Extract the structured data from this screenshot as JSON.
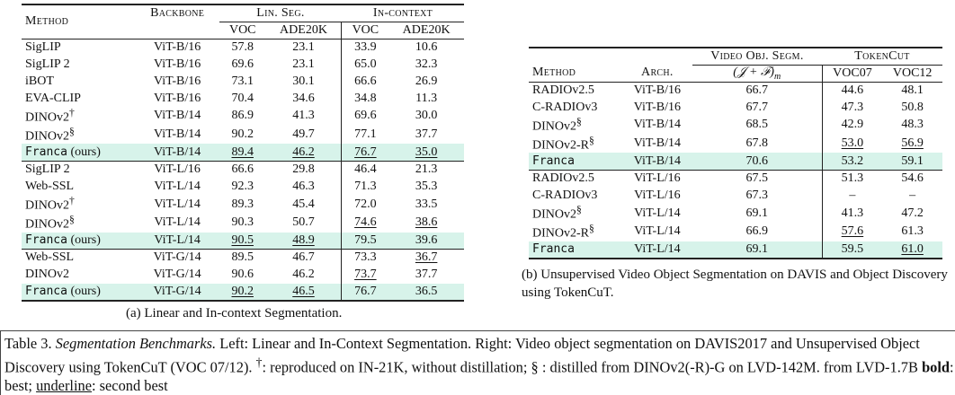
{
  "table_a": {
    "headers": {
      "method": "Method",
      "backbone": "Backbone",
      "lin_seg": "Lin. Seg.",
      "in_context": "In-context",
      "voc": "VOC",
      "ade": "ADE20K"
    },
    "groups": [
      {
        "rows": [
          {
            "method": "SigLIP",
            "backbone": "ViT-B/16",
            "v1": "57.8",
            "v2": "23.1",
            "v3": "33.9",
            "v4": "10.6"
          },
          {
            "method": "SigLIP 2",
            "backbone": "ViT-B/16",
            "v1": "69.6",
            "v2": "23.1",
            "v3": "65.0",
            "v4": "32.3"
          },
          {
            "method": "iBOT",
            "backbone": "ViT-B/16",
            "v1": "73.1",
            "v2": "30.1",
            "v3": "66.6",
            "v4": "26.9"
          },
          {
            "method": "EVA-CLIP",
            "backbone": "ViT-B/16",
            "v1": "70.4",
            "v2": "34.6",
            "v3": "34.8",
            "v4": "11.3"
          },
          {
            "method": "DINOv2",
            "sup": "†",
            "backbone": "ViT-B/14",
            "v1": "86.9",
            "v2": "41.3",
            "v3": "69.6",
            "v4": "30.0"
          },
          {
            "method": "DINOv2",
            "sup": "§",
            "backbone": "ViT-B/14",
            "v1": "90.2",
            "v2": "49.7",
            "v3": "77.1",
            "v4": "37.7"
          }
        ],
        "ours": {
          "method": "Franca",
          "suffix": "(ours)",
          "backbone": "ViT-B/14",
          "v1": "89.4",
          "v2": "46.2",
          "v3": "76.7",
          "v4": "35.0"
        }
      },
      {
        "rows": [
          {
            "method": "SigLIP 2",
            "backbone": "ViT-L/16",
            "v1": "66.6",
            "v2": "29.8",
            "v3": "46.4",
            "v4": "21.3"
          },
          {
            "method": "Web-SSL",
            "backbone": "ViT-L/14",
            "v1": "92.3",
            "v2": "46.3",
            "v3": "71.3",
            "v4": "35.3"
          },
          {
            "method": "DINOv2",
            "sup": "†",
            "backbone": "ViT-L/14",
            "v1": "89.3",
            "v2": "45.4",
            "v3": "72.0",
            "v4": "33.5"
          },
          {
            "method": "DINOv2",
            "sup": "§",
            "backbone": "ViT-L/14",
            "v1": "90.3",
            "v2": "50.7",
            "v3": "74.6",
            "v4": "38.6"
          }
        ],
        "ours": {
          "method": "Franca",
          "suffix": "(ours)",
          "backbone": "ViT-L/14",
          "v1": "90.5",
          "v2": "48.9",
          "v3": "79.5",
          "v4": "39.6"
        }
      },
      {
        "rows": [
          {
            "method": "Web-SSL",
            "backbone": "ViT-G/14",
            "v1": "89.5",
            "v2": "46.7",
            "v3": "73.3",
            "v4": "36.7"
          },
          {
            "method": "DINOv2",
            "backbone": "ViT-G/14",
            "v1": "90.6",
            "v2": "46.2",
            "v3": "73.7",
            "v4": "37.7"
          }
        ],
        "ours": {
          "method": "Franca",
          "suffix": "(ours)",
          "backbone": "ViT-G/14",
          "v1": "90.2",
          "v2": "46.5",
          "v3": "76.7",
          "v4": "36.5"
        }
      }
    ],
    "caption": "(a) Linear and In-context Segmentation."
  },
  "table_b": {
    "headers": {
      "vos": "Video Obj. Segm.",
      "tokencut": "TokenCut",
      "method": "Method",
      "arch": "Arch.",
      "metric": "(𝒥 + ℱ)",
      "metric_sub": "m",
      "voc07": "VOC07",
      "voc12": "VOC12"
    },
    "groups": [
      {
        "rows": [
          {
            "method": "RADIOv2.5",
            "arch": "ViT-B/16",
            "jf": "66.7",
            "v07": "44.6",
            "v12": "48.1"
          },
          {
            "method": "C-RADIOv3",
            "arch": "ViT-B/16",
            "jf": "67.7",
            "v07": "47.3",
            "v12": "50.8"
          },
          {
            "method": "DINOv2",
            "sup": "§",
            "arch": "ViT-B/14",
            "jf": "68.5",
            "v07": "42.9",
            "v12": "48.3"
          },
          {
            "method": "DINOv2-R",
            "sup": "§",
            "arch": "ViT-B/14",
            "jf": "67.8",
            "v07": "53.0",
            "v12": "56.9"
          }
        ],
        "ours": {
          "method": "Franca",
          "arch": "ViT-B/14",
          "jf": "70.6",
          "v07": "53.2",
          "v12": "59.1"
        }
      },
      {
        "rows": [
          {
            "method": "RADIOv2.5",
            "arch": "ViT-L/16",
            "jf": "67.5",
            "v07": "51.3",
            "v12": "54.6"
          },
          {
            "method": "C-RADIOv3",
            "arch": "ViT-L/16",
            "jf": "67.3",
            "v07": "–",
            "v12": "–"
          },
          {
            "method": "DINOv2",
            "sup": "§",
            "arch": "ViT-L/14",
            "jf": "69.1",
            "v07": "41.3",
            "v12": "47.2"
          },
          {
            "method": "DINOv2-R",
            "sup": "§",
            "arch": "ViT-L/14",
            "jf": "66.9",
            "v07": "57.6",
            "v12": "61.3"
          }
        ],
        "ours": {
          "method": "Franca",
          "arch": "ViT-L/14",
          "jf": "69.1",
          "v07": "59.5",
          "v12": "61.0"
        }
      }
    ],
    "caption": "(b) Unsupervised Video Object Segmentation on DAVIS and Object Discovery using TokenCuT."
  },
  "caption": {
    "label": "Table 3.",
    "title": "Segmentation Benchmarks.",
    "text1": "Left: Linear and In-Context Segmentation. Right: Video object segmentation on DAVIS2017 and Unsupervised Object Discovery using TokenCuT (VOC 07/12).",
    "dagger": "†",
    "text2": ": reproduced on IN-21K, without distillation;",
    "sect": "§",
    "text3": ": distilled from DINOv2(-R)-G on LVD-142M. from LVD-1.7B",
    "bold_word": "bold",
    "text4": ": best;",
    "underline_word": "underline",
    "text5": ": second best"
  }
}
